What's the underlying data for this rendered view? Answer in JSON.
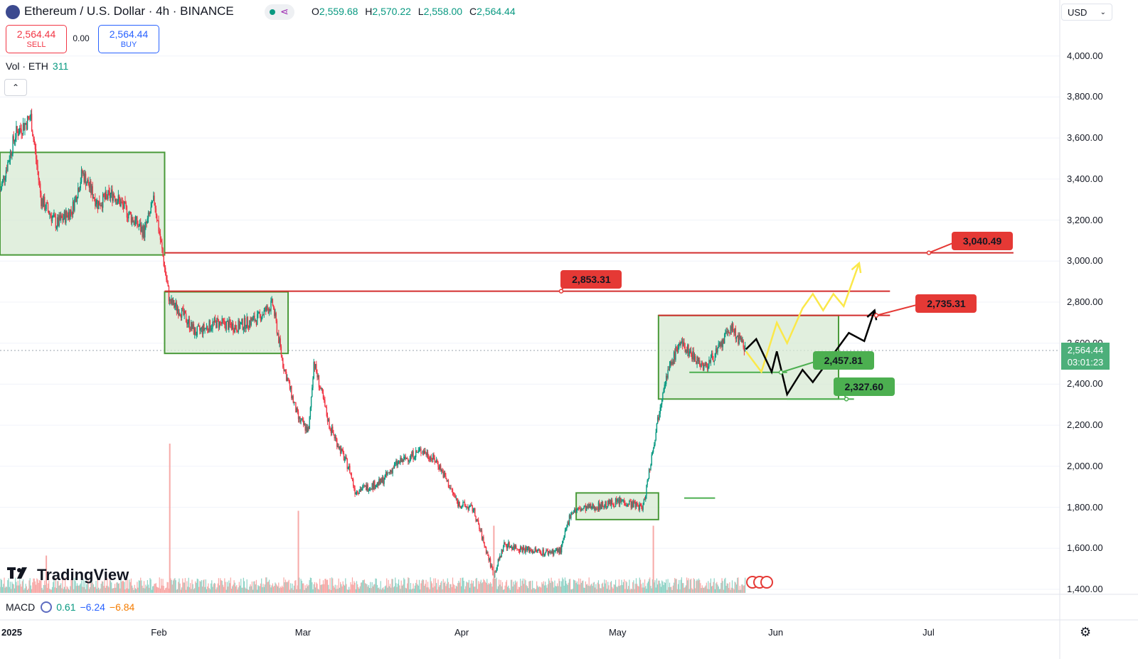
{
  "header": {
    "title": "Ethereum / U.S. Dollar · 4h · BINANCE",
    "ohlc": [
      {
        "k": "O",
        "v": "2,559.68"
      },
      {
        "k": "H",
        "v": "2,570.22"
      },
      {
        "k": "L",
        "v": "2,558.00"
      },
      {
        "k": "C",
        "v": "2,564.44"
      }
    ],
    "sell_price": "2,564.44",
    "sell_label": "SELL",
    "spread": "0.00",
    "buy_price": "2,564.44",
    "buy_label": "BUY",
    "vol_label": "Vol · ETH",
    "vol_value": "311",
    "collapse_glyph": "⌃",
    "currency": "USD",
    "currency_chevron": "⌄"
  },
  "price_tag": {
    "price": "2,564.44",
    "countdown": "03:01:23"
  },
  "footer": {
    "logo_text": "TradingView",
    "macd_label": "MACD",
    "macd_values": [
      "0.61",
      "−6.24",
      "−6.84"
    ],
    "gear_glyph": "⚙"
  },
  "colors": {
    "up": "#089981",
    "down": "#f23645",
    "box_fill": "#d7ead3",
    "box_stroke": "#4a9a3a",
    "resistance": "#d32f2f",
    "callout_red": "#e53935",
    "callout_green": "#4caf50",
    "path_yellow": "#fbe84a",
    "path_black": "#000000"
  },
  "chart_data": {
    "type": "candlestick",
    "title": "Ethereum / U.S. Dollar · 4h · BINANCE",
    "y_ticks": [
      "4,000.00",
      "3,800.00",
      "3,600.00",
      "3,400.00",
      "3,200.00",
      "3,000.00",
      "2,800.00",
      "2,600.00",
      "2,400.00",
      "2,200.00",
      "2,000.00",
      "1,800.00",
      "1,600.00",
      "1,400.00"
    ],
    "y_tick_values": [
      4000,
      3800,
      3600,
      3400,
      3200,
      3000,
      2800,
      2600,
      2400,
      2200,
      2000,
      1800,
      1600,
      1400
    ],
    "ylim": [
      1400,
      4200
    ],
    "x_ticks": [
      {
        "label": "2025",
        "date": "2025-01-01",
        "year": true
      },
      {
        "label": "Feb",
        "date": "2025-02-01"
      },
      {
        "label": "Mar",
        "date": "2025-03-01"
      },
      {
        "label": "Apr",
        "date": "2025-04-01"
      },
      {
        "label": "May",
        "date": "2025-05-01"
      },
      {
        "label": "Jun",
        "date": "2025-06-01"
      },
      {
        "label": "Jul",
        "date": "2025-07-01"
      }
    ],
    "xlim": [
      "2025-01-01",
      "2025-07-26"
    ],
    "last_date": "2025-05-26",
    "price_path": [
      [
        "2025-01-01",
        3340
      ],
      [
        "2025-01-04",
        3620
      ],
      [
        "2025-01-07",
        3700
      ],
      [
        "2025-01-09",
        3300
      ],
      [
        "2025-01-12",
        3180
      ],
      [
        "2025-01-15",
        3250
      ],
      [
        "2025-01-17",
        3430
      ],
      [
        "2025-01-20",
        3280
      ],
      [
        "2025-01-23",
        3330
      ],
      [
        "2025-01-26",
        3230
      ],
      [
        "2025-01-29",
        3140
      ],
      [
        "2025-01-31",
        3300
      ],
      [
        "2025-02-03",
        2800
      ],
      [
        "2025-02-05",
        2760
      ],
      [
        "2025-02-08",
        2650
      ],
      [
        "2025-02-12",
        2700
      ],
      [
        "2025-02-16",
        2680
      ],
      [
        "2025-02-20",
        2720
      ],
      [
        "2025-02-23",
        2790
      ],
      [
        "2025-02-25",
        2500
      ],
      [
        "2025-02-28",
        2230
      ],
      [
        "2025-03-02",
        2170
      ],
      [
        "2025-03-03",
        2510
      ],
      [
        "2025-03-06",
        2200
      ],
      [
        "2025-03-10",
        1980
      ],
      [
        "2025-03-11",
        1880
      ],
      [
        "2025-03-16",
        1920
      ],
      [
        "2025-03-19",
        2010
      ],
      [
        "2025-03-24",
        2080
      ],
      [
        "2025-03-27",
        2020
      ],
      [
        "2025-03-31",
        1820
      ],
      [
        "2025-04-03",
        1790
      ],
      [
        "2025-04-07",
        1470
      ],
      [
        "2025-04-09",
        1620
      ],
      [
        "2025-04-12",
        1600
      ],
      [
        "2025-04-17",
        1580
      ],
      [
        "2025-04-20",
        1590
      ],
      [
        "2025-04-22",
        1780
      ],
      [
        "2025-04-26",
        1800
      ],
      [
        "2025-05-02",
        1830
      ],
      [
        "2025-05-06",
        1800
      ],
      [
        "2025-05-08",
        2100
      ],
      [
        "2025-05-10",
        2400
      ],
      [
        "2025-05-13",
        2600
      ],
      [
        "2025-05-15",
        2560
      ],
      [
        "2025-05-18",
        2480
      ],
      [
        "2025-05-21",
        2580
      ],
      [
        "2025-05-23",
        2680
      ],
      [
        "2025-05-26",
        2564
      ]
    ],
    "volume_spikes": [
      {
        "date": "2025-02-03",
        "level": 1.0
      },
      {
        "date": "2025-02-28",
        "level": 0.55
      },
      {
        "date": "2025-04-07",
        "level": 0.45
      },
      {
        "date": "2025-05-08",
        "level": 0.45
      },
      {
        "date": "2025-01-10",
        "level": 0.25
      }
    ],
    "zones": [
      {
        "name": "range-jan",
        "from": "2025-01-01",
        "to": "2025-02-02",
        "low": 3030,
        "high": 3530
      },
      {
        "name": "range-feb",
        "from": "2025-02-02",
        "to": "2025-02-26",
        "low": 2550,
        "high": 2850
      },
      {
        "name": "range-apr",
        "from": "2025-04-23",
        "to": "2025-05-09",
        "low": 1740,
        "high": 1870
      },
      {
        "name": "range-may",
        "from": "2025-05-09",
        "to": "2025-06-13",
        "low": 2327.6,
        "high": 2735
      }
    ],
    "resistance_lines": [
      {
        "name": "resistance-3040",
        "price": 3040.49,
        "from": "2025-02-02",
        "to": "2025-07-17"
      },
      {
        "name": "resistance-2853",
        "price": 2853.31,
        "from": "2025-02-02",
        "to": "2025-06-23"
      },
      {
        "name": "resistance-2735",
        "price": 2735.31,
        "from": "2025-05-09",
        "to": "2025-06-23"
      }
    ],
    "support_lines": [
      {
        "name": "support-2457",
        "price": 2457.81,
        "from": "2025-05-15",
        "to": "2025-06-03"
      },
      {
        "name": "support-2327",
        "price": 2327.6,
        "from": "2025-06-03",
        "to": "2025-06-16"
      },
      {
        "name": "minor-1845",
        "price": 1845,
        "from": "2025-05-14",
        "to": "2025-05-20"
      }
    ],
    "callouts": [
      {
        "label": "3,040.49",
        "price": 3040.49,
        "date": "2025-07-05",
        "color": "red"
      },
      {
        "label": "2,853.31",
        "price": 2853.31,
        "date": "2025-04-20",
        "color": "red"
      },
      {
        "label": "2,735.31",
        "price": 2735.31,
        "date": "2025-06-28",
        "color": "red"
      },
      {
        "label": "2,457.81",
        "price": 2457.81,
        "date": "2025-06-08",
        "color": "green"
      },
      {
        "label": "2,327.60",
        "price": 2327.6,
        "date": "2025-06-12",
        "color": "green"
      }
    ],
    "projection_yellow": [
      [
        "2025-05-26",
        2560
      ],
      [
        "2025-05-29",
        2460
      ],
      [
        "2025-06-01",
        2700
      ],
      [
        "2025-06-03",
        2600
      ],
      [
        "2025-06-06",
        2770
      ],
      [
        "2025-06-08",
        2840
      ],
      [
        "2025-06-10",
        2760
      ],
      [
        "2025-06-12",
        2840
      ],
      [
        "2025-06-14",
        2780
      ],
      [
        "2025-06-17",
        2990
      ]
    ],
    "projection_black": [
      [
        "2025-05-26",
        2570
      ],
      [
        "2025-05-28",
        2620
      ],
      [
        "2025-05-31",
        2460
      ],
      [
        "2025-06-01",
        2560
      ],
      [
        "2025-06-03",
        2350
      ],
      [
        "2025-06-06",
        2470
      ],
      [
        "2025-06-08",
        2410
      ],
      [
        "2025-06-15",
        2650
      ],
      [
        "2025-06-18",
        2610
      ],
      [
        "2025-06-20",
        2760
      ]
    ]
  }
}
